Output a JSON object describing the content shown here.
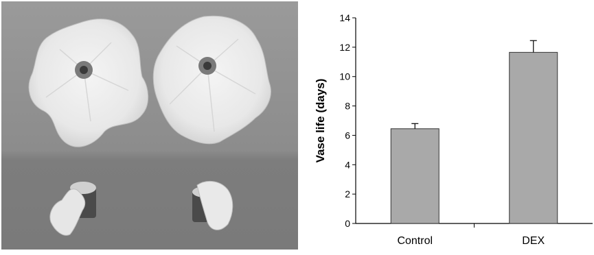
{
  "photo": {
    "description_icon": "petunia-flowers-photo-icon"
  },
  "chart_data": {
    "type": "bar",
    "categories": [
      "Control",
      "DEX"
    ],
    "values": [
      6.45,
      11.65
    ],
    "errors": [
      0.35,
      0.8
    ],
    "title": "",
    "xlabel": "",
    "ylabel": "Vase life (days)",
    "ylim": [
      0,
      14
    ],
    "yticks": [
      0,
      2,
      4,
      6,
      8,
      10,
      12,
      14
    ],
    "grid": false,
    "bar_color": "#a9a9a9"
  }
}
